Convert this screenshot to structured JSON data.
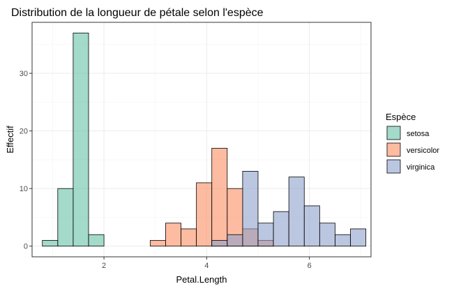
{
  "chart_data": {
    "type": "bar",
    "title": "Distribution de la longueur de pétale selon l'espèce",
    "xlabel": "Petal.Length",
    "ylabel": "Effectif",
    "xlim": [
      0.6,
      7.2
    ],
    "ylim": [
      -1.85,
      38.85
    ],
    "x_ticks": [
      2,
      4,
      6
    ],
    "y_ticks": [
      0,
      10,
      20,
      30
    ],
    "grid": true,
    "bin_width": 0.3,
    "legend": {
      "title": "Espèce",
      "position": "right"
    },
    "series": [
      {
        "name": "setosa",
        "color": "#66c2a5",
        "bins": [
          {
            "x": 0.95,
            "value": 1
          },
          {
            "x": 1.25,
            "value": 10
          },
          {
            "x": 1.55,
            "value": 37
          },
          {
            "x": 1.85,
            "value": 2
          }
        ]
      },
      {
        "name": "versicolor",
        "color": "#fc8d62",
        "bins": [
          {
            "x": 3.05,
            "value": 1
          },
          {
            "x": 3.35,
            "value": 4
          },
          {
            "x": 3.65,
            "value": 3
          },
          {
            "x": 3.95,
            "value": 11
          },
          {
            "x": 4.25,
            "value": 17
          },
          {
            "x": 4.55,
            "value": 10
          },
          {
            "x": 4.85,
            "value": 3
          },
          {
            "x": 5.15,
            "value": 1
          }
        ]
      },
      {
        "name": "virginica",
        "color": "#8da0cb",
        "bins": [
          {
            "x": 4.25,
            "value": 1
          },
          {
            "x": 4.55,
            "value": 2
          },
          {
            "x": 4.85,
            "value": 13
          },
          {
            "x": 5.15,
            "value": 4
          },
          {
            "x": 5.45,
            "value": 6
          },
          {
            "x": 5.75,
            "value": 12
          },
          {
            "x": 6.05,
            "value": 7
          },
          {
            "x": 6.35,
            "value": 4
          },
          {
            "x": 6.65,
            "value": 2
          },
          {
            "x": 6.95,
            "value": 3
          }
        ]
      }
    ]
  }
}
